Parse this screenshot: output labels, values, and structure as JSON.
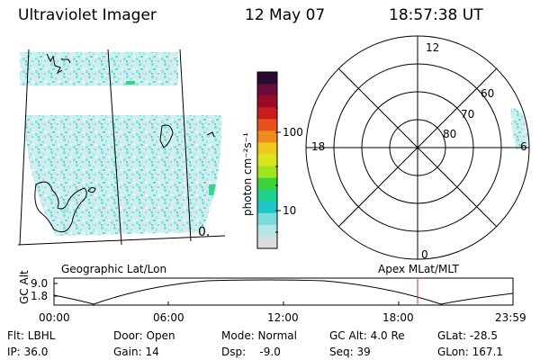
{
  "header": {
    "instrument": "Ultraviolet Imager",
    "date": "12 May 07",
    "time": "18:57:38 UT"
  },
  "map_left": {
    "caption": "Geographic Lat/Lon",
    "label_small": "0."
  },
  "colorbar": {
    "unit_label": "photon cm⁻²s⁻¹",
    "tick_labels": [
      "100",
      "10"
    ],
    "colors": [
      "#2a0a30",
      "#6b0a3c",
      "#9c0a2a",
      "#c81e1e",
      "#e8501e",
      "#f08c1e",
      "#f0c81e",
      "#d8e61e",
      "#a0e61e",
      "#3cd23c",
      "#1ed28c",
      "#1ec8c8",
      "#78dcdc",
      "#b4e6e6",
      "#dcdcdc"
    ]
  },
  "polar": {
    "caption": "Apex MLat/MLT",
    "mlt_labels": [
      "12",
      "18",
      "6",
      "0"
    ],
    "lat_labels": [
      "60",
      "70",
      "80"
    ]
  },
  "altitude_plot": {
    "ylabel": "GC Alt",
    "y_ticks": [
      "9.0",
      "1.8"
    ],
    "x_ticks": [
      "00:00",
      "06:00",
      "12:00",
      "18:00",
      "23:59"
    ],
    "marker_time": "18:57"
  },
  "footer": {
    "row1": [
      "Flt: LBHL",
      "Door: Open",
      "Mode: Normal",
      "GC Alt: 4.0 Re",
      "GLat: -28.5"
    ],
    "row2": [
      "IP: 36.0",
      "Gain: 14",
      "Dsp:    -9.0",
      "Seq: 39",
      "GLon: 167.1"
    ]
  },
  "colors": {
    "speckle_primary": "#7fe0e0",
    "speckle_secondary": "#c8e8e8",
    "speckle_accent": "#30d890",
    "marker": "#cc3333"
  }
}
